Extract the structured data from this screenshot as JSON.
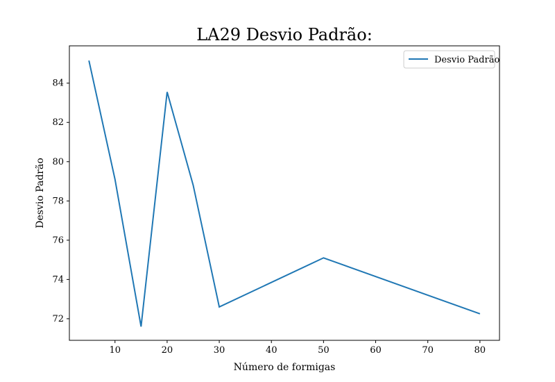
{
  "chart_data": {
    "type": "line",
    "title": "LA29 Desvio Padrão:",
    "xlabel": "Número de formigas",
    "ylabel": "Desvio Padrão",
    "x": [
      5,
      10,
      15,
      20,
      25,
      30,
      50,
      80
    ],
    "series": [
      {
        "name": "Desvio Padrão",
        "color": "#1f77b4",
        "values": [
          85.15,
          79.1,
          71.6,
          83.55,
          78.8,
          72.6,
          75.1,
          72.25
        ]
      }
    ],
    "xlim": [
      1.25,
      83.75
    ],
    "ylim": [
      70.9,
      85.9
    ],
    "xticks": [
      10,
      20,
      30,
      40,
      50,
      60,
      70,
      80
    ],
    "yticks": [
      72,
      74,
      76,
      78,
      80,
      82,
      84
    ],
    "grid": false,
    "legend_position": "top-right"
  }
}
